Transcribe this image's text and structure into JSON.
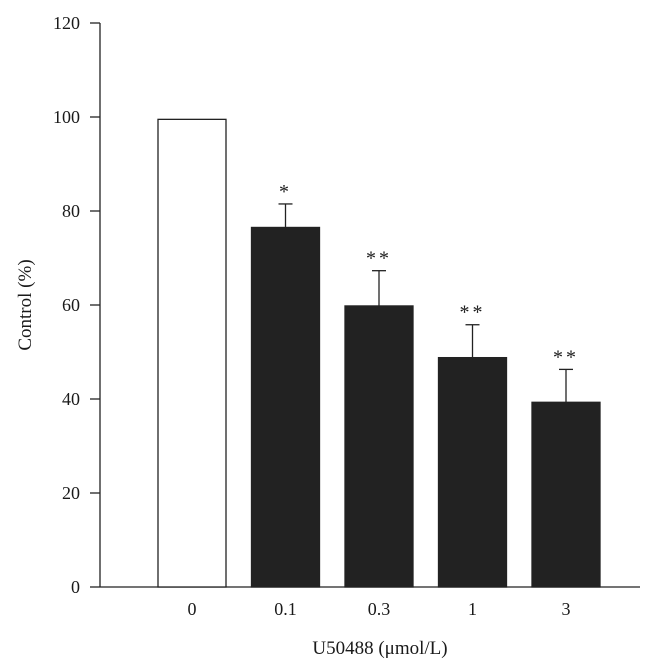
{
  "chart_data": {
    "type": "bar",
    "title": "",
    "xlabel": "U50488 (μmol/L)",
    "ylabel": "Control (%)",
    "ylim": [
      0,
      120
    ],
    "yticks": [
      0,
      20,
      40,
      60,
      80,
      100,
      120
    ],
    "categories": [
      "0",
      "0.1",
      "0.3",
      "1",
      "3"
    ],
    "values": [
      99.5,
      76.5,
      59.8,
      48.8,
      39.3
    ],
    "errors": [
      0,
      5,
      7.5,
      7,
      7
    ],
    "significance": [
      "",
      "*",
      "**",
      "**",
      "**"
    ],
    "bar_fills": [
      "#ffffff",
      "#222222",
      "#222222",
      "#222222",
      "#222222"
    ],
    "grid": false,
    "legend": "none"
  }
}
